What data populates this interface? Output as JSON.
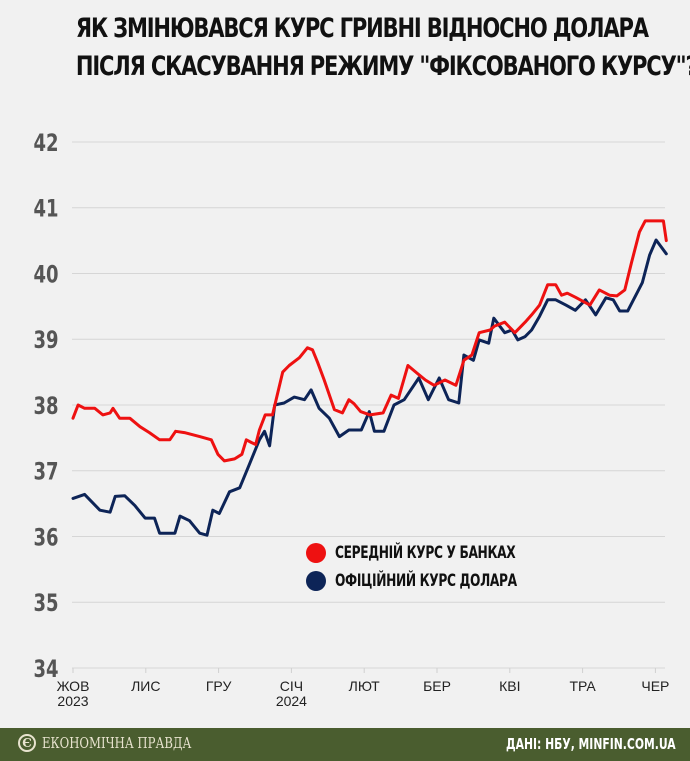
{
  "title": {
    "line1": "ЯК ЗМІНЮВАВСЯ КУРС ГРИВНІ ВІДНОСНО ДОЛАРА",
    "line2": "ПІСЛЯ СКАСУВАННЯ РЕЖИМУ \"ФІКСОВАНОГО КУРСУ\"?"
  },
  "legend": [
    {
      "label": "СЕРЕДНІЙ КУРС У БАНКАХ",
      "color": "#ee1111"
    },
    {
      "label": "ОФІЦІЙНИЙ КУРС ДОЛАРА",
      "color": "#0d2457"
    }
  ],
  "footer": {
    "brand": "ЕКОНОМІЧНА ПРАВДА",
    "brand_logo": "Є",
    "source": "ДАНІ: НБУ, MINFIN.COM.UA"
  },
  "chart_data": {
    "type": "line",
    "title": "Як змінювався курс гривні відносно долара після скасування режиму \"фіксованого курсу\"?",
    "xlabel": "",
    "ylabel": "",
    "ylim": [
      34,
      42
    ],
    "yticks": [
      34,
      35,
      36,
      37,
      38,
      39,
      40,
      41,
      42
    ],
    "grid": true,
    "legend_position": "inside-lower-right",
    "x_tick_labels": [
      {
        "label": "ЖОВ",
        "sub": "2023",
        "pos": 0
      },
      {
        "label": "ЛИС",
        "sub": "",
        "pos": 1
      },
      {
        "label": "ГРУ",
        "sub": "",
        "pos": 2
      },
      {
        "label": "СІЧ",
        "sub": "2024",
        "pos": 3
      },
      {
        "label": "ЛЮТ",
        "sub": "",
        "pos": 4
      },
      {
        "label": "БЕР",
        "sub": "",
        "pos": 5
      },
      {
        "label": "КВІ",
        "sub": "",
        "pos": 6
      },
      {
        "label": "ТРА",
        "sub": "",
        "pos": 7
      },
      {
        "label": "ЧЕР",
        "sub": "",
        "pos": 8
      }
    ],
    "x_unit": "months since Oct 1 2023",
    "series": [
      {
        "name": "Середній курс у банках",
        "color": "#ee1111",
        "x": [
          0.0,
          0.07,
          0.16,
          0.3,
          0.41,
          0.51,
          0.55,
          0.64,
          0.78,
          0.92,
          1.05,
          1.19,
          1.33,
          1.41,
          1.53,
          1.74,
          1.9,
          1.99,
          2.08,
          2.22,
          2.32,
          2.38,
          2.45,
          2.51,
          2.56,
          2.64,
          2.74,
          2.88,
          2.97,
          3.11,
          3.22,
          3.29,
          3.36,
          3.45,
          3.59,
          3.7,
          3.79,
          3.86,
          3.95,
          4.08,
          4.26,
          4.37,
          4.47,
          4.6,
          4.73,
          4.84,
          4.96,
          5.11,
          5.26,
          5.37,
          5.48,
          5.58,
          5.73,
          5.79,
          5.93,
          6.07,
          6.21,
          6.3,
          6.41,
          6.52,
          6.63,
          6.71,
          6.79,
          6.9,
          7.1,
          7.23,
          7.37,
          7.47,
          7.58,
          7.67,
          7.78,
          7.86,
          8.0,
          8.11,
          8.15
        ],
        "values": [
          37.8,
          38.0,
          37.95,
          37.95,
          37.85,
          37.88,
          37.95,
          37.8,
          37.8,
          37.67,
          37.58,
          37.47,
          37.47,
          37.6,
          37.58,
          37.52,
          37.47,
          37.25,
          37.15,
          37.18,
          37.25,
          37.47,
          37.43,
          37.4,
          37.62,
          37.85,
          37.85,
          38.5,
          38.6,
          38.72,
          38.87,
          38.84,
          38.65,
          38.38,
          37.93,
          37.88,
          38.08,
          38.02,
          37.9,
          37.85,
          37.88,
          38.15,
          38.1,
          38.6,
          38.48,
          38.38,
          38.3,
          38.38,
          38.3,
          38.68,
          38.76,
          39.1,
          39.14,
          39.2,
          39.26,
          39.1,
          39.26,
          39.37,
          39.52,
          39.83,
          39.83,
          39.67,
          39.7,
          39.64,
          39.52,
          39.75,
          39.67,
          39.66,
          39.75,
          40.16,
          40.63,
          40.8,
          40.8,
          40.8,
          40.5
        ]
      },
      {
        "name": "Офіційний курс долара",
        "color": "#0d2457",
        "x": [
          0.0,
          0.16,
          0.37,
          0.51,
          0.58,
          0.71,
          0.85,
          0.99,
          1.12,
          1.19,
          1.4,
          1.47,
          1.6,
          1.74,
          1.84,
          1.92,
          2.01,
          2.15,
          2.29,
          2.42,
          2.56,
          2.63,
          2.7,
          2.77,
          2.9,
          3.04,
          3.18,
          3.27,
          3.38,
          3.52,
          3.66,
          3.79,
          3.96,
          4.07,
          4.14,
          4.27,
          4.41,
          4.55,
          4.75,
          4.88,
          5.03,
          5.16,
          5.3,
          5.37,
          5.5,
          5.58,
          5.71,
          5.78,
          5.93,
          6.03,
          6.11,
          6.21,
          6.3,
          6.41,
          6.52,
          6.63,
          6.77,
          6.9,
          7.04,
          7.18,
          7.32,
          7.42,
          7.51,
          7.62,
          7.82,
          7.92,
          8.01,
          8.15
        ],
        "values": [
          36.58,
          36.64,
          36.4,
          36.37,
          36.61,
          36.62,
          36.47,
          36.28,
          36.28,
          36.05,
          36.05,
          36.31,
          36.24,
          36.05,
          36.02,
          36.4,
          36.35,
          36.68,
          36.74,
          37.09,
          37.47,
          37.6,
          37.38,
          38.0,
          38.03,
          38.12,
          38.08,
          38.23,
          37.95,
          37.8,
          37.52,
          37.62,
          37.62,
          37.9,
          37.6,
          37.6,
          38.0,
          38.08,
          38.41,
          38.08,
          38.41,
          38.08,
          38.03,
          38.76,
          38.68,
          38.99,
          38.94,
          39.32,
          39.1,
          39.14,
          38.99,
          39.04,
          39.14,
          39.35,
          39.6,
          39.6,
          39.52,
          39.44,
          39.6,
          39.37,
          39.63,
          39.6,
          39.43,
          39.43,
          39.86,
          40.28,
          40.51,
          40.3
        ]
      }
    ]
  }
}
